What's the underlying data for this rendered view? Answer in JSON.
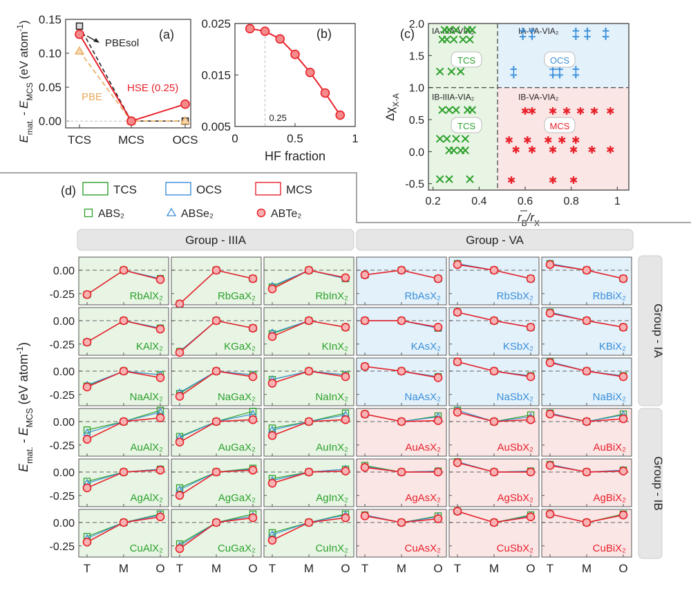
{
  "colors": {
    "tcs": "#2ca02c",
    "ocs": "#3a8fd9",
    "mcs": "#e8202a",
    "pbe": "#e8a85a",
    "black": "#222222",
    "bg_green": "#e8f5e4",
    "bg_blue": "#e3f1fb",
    "bg_red": "#fbe6e6",
    "header_bg": "#e6e6e6"
  },
  "chart_data": [
    {
      "id": "a",
      "type": "line",
      "panel_label": "(a)",
      "categories": [
        "TCS",
        "MCS",
        "OCS"
      ],
      "ylabel_main": "E",
      "ylabel_sub1": "mat.",
      "ylabel_mid": " - E",
      "ylabel_sub2": "MCS",
      "ylabel_unit": " (eV atom",
      "ylabel_sup": "-1",
      "ylabel_end": ")",
      "yticks": [
        "0.00",
        "0.05",
        "0.10",
        "0.15"
      ],
      "ylim": [
        -0.01,
        0.15
      ],
      "annotations": [
        "PBEsol",
        "PBE",
        "HSE (0.25)"
      ],
      "series": [
        {
          "name": "PBEsol",
          "values": [
            0.14,
            0.0,
            0.0
          ]
        },
        {
          "name": "PBE",
          "values": [
            0.103,
            0.0,
            0.0
          ]
        },
        {
          "name": "HSE (0.25)",
          "values": [
            0.128,
            0.0,
            0.025
          ]
        }
      ]
    },
    {
      "id": "b",
      "type": "line",
      "panel_label": "(b)",
      "xlabel": "HF fraction",
      "xticks": [
        "0",
        "0.5",
        "1"
      ],
      "yticks": [
        "0.005",
        "0.015",
        "0.025"
      ],
      "xlim": [
        0,
        1
      ],
      "ylim": [
        0.005,
        0.025
      ],
      "marker_label": "0.25",
      "x": [
        0.125,
        0.25,
        0.375,
        0.5,
        0.625,
        0.75,
        0.875
      ],
      "y": [
        0.024,
        0.0235,
        0.022,
        0.019,
        0.0155,
        0.0115,
        0.0072
      ]
    },
    {
      "id": "c",
      "type": "scatter",
      "panel_label": "(c)",
      "xlabel_bar": "r",
      "xlabel_sub1": "B",
      "xlabel_mid": "/r",
      "xlabel_sub2": "X",
      "ylabel_main": "Δχ",
      "ylabel_sub": "X-A",
      "xticks": [
        "0.2",
        "0.4",
        "0.6",
        "0.8",
        "1"
      ],
      "yticks": [
        "-0.5",
        "0.0",
        "0.5",
        "1.0",
        "1.5",
        "2.0"
      ],
      "xlim": [
        0.18,
        1.05
      ],
      "ylim": [
        -0.6,
        2.0
      ],
      "quadrant_labels": [
        "IA-IIIA-VIA₂",
        "IA-VA-VIA₂",
        "IB-IIIA-VIA₂",
        "IB-VA-VIA₂"
      ],
      "region_labels": [
        "TCS",
        "OCS",
        "TCS",
        "MCS"
      ],
      "series": [
        {
          "name": "IA-IIIA",
          "x": [
            0.25,
            0.27,
            0.3,
            0.35,
            0.37,
            0.24,
            0.26,
            0.29,
            0.33,
            0.36,
            0.23,
            0.28,
            0.32
          ],
          "y": [
            1.9,
            1.9,
            1.9,
            1.9,
            1.9,
            1.75,
            1.75,
            1.75,
            1.75,
            1.75,
            1.25,
            1.25,
            1.25
          ]
        },
        {
          "name": "IA-VA",
          "x": [
            0.59,
            0.63,
            0.82,
            0.87,
            0.95,
            0.55,
            0.72,
            0.75,
            0.82
          ],
          "y": [
            1.85,
            1.85,
            1.85,
            1.85,
            1.85,
            1.25,
            1.25,
            1.25,
            1.25
          ]
        },
        {
          "name": "IB-IIIA",
          "x": [
            0.24,
            0.27,
            0.3,
            0.35,
            0.37,
            0.23,
            0.26,
            0.3,
            0.34,
            0.27,
            0.29,
            0.32,
            0.34,
            0.23,
            0.27,
            0.36
          ],
          "y": [
            0.65,
            0.65,
            0.65,
            0.65,
            0.65,
            0.2,
            0.2,
            0.2,
            0.2,
            0.02,
            0.02,
            0.02,
            0.02,
            -0.43,
            -0.43,
            -0.43
          ]
        },
        {
          "name": "IB-VA",
          "x": [
            0.6,
            0.63,
            0.72,
            0.78,
            0.84,
            0.9,
            0.97,
            0.53,
            0.61,
            0.7,
            0.76,
            0.82,
            0.56,
            0.63,
            0.72,
            0.81,
            0.89,
            0.97,
            0.54,
            0.72,
            0.81
          ],
          "y": [
            0.65,
            0.65,
            0.65,
            0.65,
            0.65,
            0.65,
            0.65,
            0.2,
            0.2,
            0.2,
            0.2,
            0.2,
            0.05,
            0.05,
            0.05,
            0.05,
            0.05,
            0.05,
            -0.43,
            -0.43,
            -0.43
          ]
        }
      ]
    },
    {
      "id": "d",
      "type": "line",
      "panel_label": "(d)",
      "legend": [
        "TCS",
        "OCS",
        "MCS",
        "ABS₂",
        "ABSe₂",
        "ABTe₂"
      ],
      "column_headers": [
        "Group - IIIA",
        "Group - VA"
      ],
      "row_headers": [
        "Group - IA",
        "Group - IB"
      ],
      "categories": [
        "T",
        "M",
        "O"
      ],
      "yticks": [
        "0.00",
        "-0.25"
      ],
      "ylim": [
        -0.37,
        0.14
      ],
      "ylabel_main": "E",
      "ylabel_sub1": "mat.",
      "ylabel_mid": " - E",
      "ylabel_sub2": "MCS",
      "ylabel_unit": " (eV atom",
      "ylabel_sup": "-1",
      "ylabel_end": ")",
      "rows": [
        [
          {
            "name": "RbAlX₂",
            "values": [
              [
                -0.26,
                0,
                -0.09
              ],
              [
                -0.26,
                0,
                -0.09
              ],
              [
                -0.26,
                0,
                -0.1
              ]
            ]
          },
          {
            "name": "RbGaX₂",
            "values": [
              [
                -0.36,
                0,
                -0.09
              ],
              [
                -0.36,
                0,
                -0.09
              ],
              [
                -0.36,
                0,
                -0.09
              ]
            ]
          },
          {
            "name": "RbInX₂",
            "values": [
              [
                -0.18,
                0,
                -0.09
              ],
              [
                -0.17,
                0,
                -0.09
              ],
              [
                -0.2,
                0,
                -0.08
              ]
            ]
          },
          {
            "name": "RbAsX₂",
            "values": [
              [
                -0.05,
                0,
                -0.09
              ],
              [
                -0.05,
                0,
                -0.09
              ],
              [
                -0.05,
                0,
                -0.09
              ]
            ]
          },
          {
            "name": "RbSbX₂",
            "values": [
              [
                0.07,
                0,
                -0.09
              ],
              [
                0.07,
                0,
                -0.09
              ],
              [
                0.06,
                0,
                -0.09
              ]
            ]
          },
          {
            "name": "RbBiX₂",
            "values": [
              [
                0.07,
                0,
                -0.09
              ],
              [
                0.07,
                0,
                -0.09
              ],
              [
                0.06,
                0,
                -0.09
              ]
            ]
          }
        ],
        [
          {
            "name": "KAlX₂",
            "values": [
              [
                -0.23,
                0,
                -0.08
              ],
              [
                -0.23,
                0,
                -0.08
              ],
              [
                -0.23,
                0,
                -0.09
              ]
            ]
          },
          {
            "name": "KGaX₂",
            "values": [
              [
                -0.33,
                0,
                -0.08
              ],
              [
                -0.33,
                0,
                -0.08
              ],
              [
                -0.34,
                0,
                -0.08
              ]
            ]
          },
          {
            "name": "KInX₂",
            "values": [
              [
                -0.14,
                0,
                -0.07
              ],
              [
                -0.13,
                0,
                -0.07
              ],
              [
                -0.17,
                0,
                -0.07
              ]
            ]
          },
          {
            "name": "KAsX₂",
            "values": [
              [
                0.0,
                0,
                -0.08
              ],
              [
                0.0,
                0,
                -0.08
              ],
              [
                0.0,
                0,
                -0.07
              ]
            ]
          },
          {
            "name": "KSbX₂",
            "values": [
              [
                0.09,
                0,
                -0.07
              ],
              [
                0.09,
                0,
                -0.07
              ],
              [
                0.09,
                0,
                -0.07
              ]
            ]
          },
          {
            "name": "KBiX₂",
            "values": [
              [
                0.09,
                0,
                -0.07
              ],
              [
                0.09,
                0,
                -0.07
              ],
              [
                0.08,
                0,
                -0.07
              ]
            ]
          }
        ],
        [
          {
            "name": "NaAlX₂",
            "values": [
              [
                -0.16,
                0,
                -0.04
              ],
              [
                -0.15,
                0,
                -0.04
              ],
              [
                -0.17,
                0,
                -0.07
              ]
            ]
          },
          {
            "name": "NaGaX₂",
            "values": [
              [
                -0.24,
                0,
                -0.04
              ],
              [
                -0.23,
                0,
                -0.04
              ],
              [
                -0.27,
                0,
                -0.06
              ]
            ]
          },
          {
            "name": "NaInX₂",
            "values": [
              [
                -0.09,
                0,
                -0.04
              ],
              [
                -0.09,
                0,
                -0.04
              ],
              [
                -0.13,
                0,
                -0.06
              ]
            ]
          },
          {
            "name": "NaAsX₂",
            "values": [
              [
                0.05,
                0,
                -0.06
              ],
              [
                0.05,
                0,
                -0.06
              ],
              [
                0.05,
                0,
                -0.07
              ]
            ]
          },
          {
            "name": "NaSbX₂",
            "values": [
              [
                0.1,
                0,
                -0.05
              ],
              [
                0.1,
                0,
                -0.05
              ],
              [
                0.1,
                0,
                -0.06
              ]
            ]
          },
          {
            "name": "NaBiX₂",
            "values": [
              [
                0.1,
                0,
                -0.05
              ],
              [
                0.1,
                0,
                -0.05
              ],
              [
                0.09,
                0,
                -0.06
              ]
            ]
          }
        ],
        [
          {
            "name": "AuAlX₂",
            "values": [
              [
                -0.09,
                0,
                0.12
              ],
              [
                -0.12,
                0,
                0.1
              ],
              [
                -0.19,
                0,
                0.04
              ]
            ]
          },
          {
            "name": "AuGaX₂",
            "values": [
              [
                -0.16,
                0,
                0.11
              ],
              [
                -0.17,
                0,
                0.08
              ],
              [
                -0.22,
                0,
                0.02
              ]
            ]
          },
          {
            "name": "AuInX₂",
            "values": [
              [
                -0.07,
                0,
                0.09
              ],
              [
                -0.09,
                0,
                0.07
              ],
              [
                -0.15,
                0,
                0.02
              ]
            ]
          },
          {
            "name": "AuAsX₂",
            "values": [
              [
                0.08,
                0,
                0.06
              ],
              [
                0.08,
                0,
                0.05
              ],
              [
                0.08,
                0,
                0.01
              ]
            ]
          },
          {
            "name": "AuSbX₂",
            "values": [
              [
                0.12,
                0,
                0.07
              ],
              [
                0.12,
                0,
                0.05
              ],
              [
                0.1,
                0,
                0.02
              ]
            ]
          },
          {
            "name": "AuBiX₂",
            "values": [
              [
                0.09,
                0,
                0.08
              ],
              [
                0.09,
                0,
                0.07
              ],
              [
                0.08,
                0,
                0.03
              ]
            ]
          }
        ],
        [
          {
            "name": "AgAlX₂",
            "values": [
              [
                -0.1,
                0,
                0.03
              ],
              [
                -0.12,
                0,
                0.03
              ],
              [
                -0.17,
                0,
                0.02
              ]
            ]
          },
          {
            "name": "AgGaX₂",
            "values": [
              [
                -0.17,
                0,
                0.04
              ],
              [
                -0.19,
                0,
                0.03
              ],
              [
                -0.25,
                0,
                0.02
              ]
            ]
          },
          {
            "name": "AgInX₂",
            "values": [
              [
                -0.07,
                0,
                0.03
              ],
              [
                -0.09,
                0,
                0.03
              ],
              [
                -0.12,
                0,
                0.01
              ]
            ]
          },
          {
            "name": "AgAsX₂",
            "values": [
              [
                0.07,
                0,
                0.01
              ],
              [
                0.06,
                0,
                0.01
              ],
              [
                0.05,
                0,
                0.0
              ]
            ]
          },
          {
            "name": "AgSbX₂",
            "values": [
              [
                0.11,
                0,
                0.01
              ],
              [
                0.11,
                0,
                0.01
              ],
              [
                0.1,
                0,
                0.0
              ]
            ]
          },
          {
            "name": "AgBiX₂",
            "values": [
              [
                0.08,
                0,
                0.02
              ],
              [
                0.08,
                0,
                0.02
              ],
              [
                0.07,
                0,
                0.01
              ]
            ]
          }
        ],
        [
          {
            "name": "CuAlX₂",
            "values": [
              [
                -0.15,
                0,
                0.09
              ],
              [
                -0.17,
                0,
                0.08
              ],
              [
                -0.21,
                0,
                0.06
              ]
            ]
          },
          {
            "name": "CuGaX₂",
            "values": [
              [
                -0.23,
                0,
                0.09
              ],
              [
                -0.25,
                0,
                0.07
              ],
              [
                -0.28,
                0,
                0.05
              ]
            ]
          },
          {
            "name": "CuInX₂",
            "values": [
              [
                -0.11,
                0,
                0.09
              ],
              [
                -0.13,
                0,
                0.08
              ],
              [
                -0.19,
                0,
                0.05
              ]
            ]
          },
          {
            "name": "CuAsX₂",
            "values": [
              [
                0.08,
                0,
                0.07
              ],
              [
                0.08,
                0,
                0.06
              ],
              [
                0.07,
                0,
                0.04
              ]
            ]
          },
          {
            "name": "CuSbX₂",
            "values": [
              [
                0.12,
                0,
                0.08
              ],
              [
                0.12,
                0,
                0.07
              ],
              [
                0.12,
                0,
                0.06
              ]
            ]
          },
          {
            "name": "CuBiX₂",
            "values": [
              [
                0.09,
                0,
                0.09
              ],
              [
                0.09,
                0,
                0.08
              ],
              [
                0.09,
                0,
                0.08
              ]
            ]
          }
        ]
      ]
    }
  ]
}
